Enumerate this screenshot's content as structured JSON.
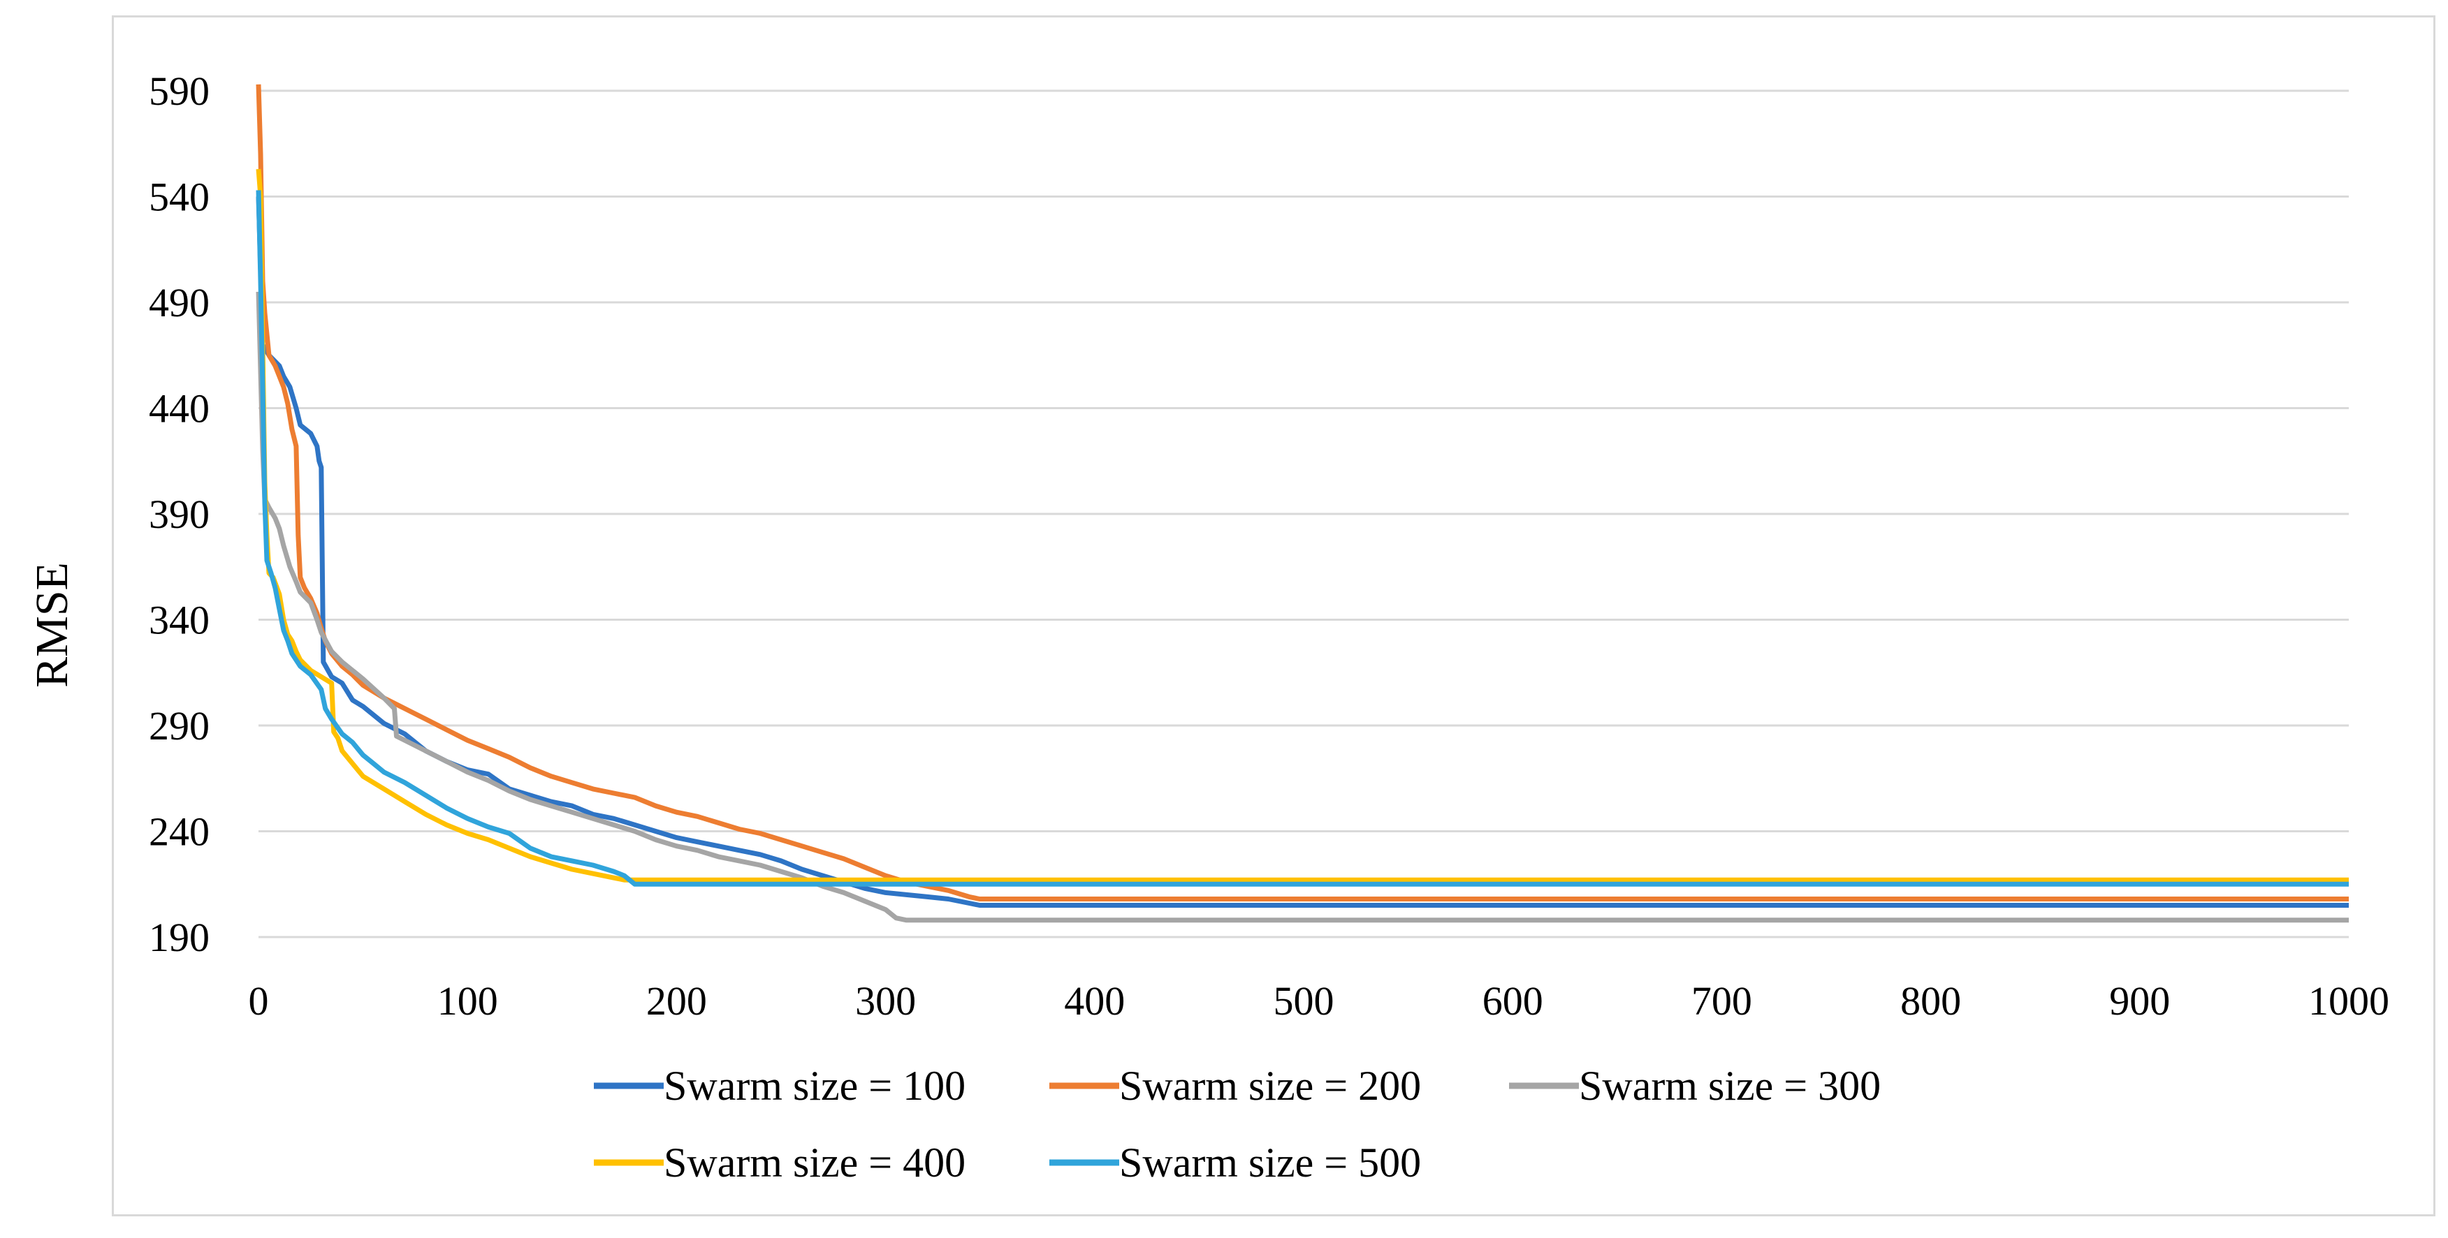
{
  "chart_data": {
    "type": "line",
    "title": "",
    "xlabel": "",
    "ylabel": "RMSE",
    "xlim": [
      0,
      1000
    ],
    "ylim": [
      190,
      600
    ],
    "x_ticks": [
      "0",
      "100",
      "200",
      "300",
      "400",
      "500",
      "600",
      "700",
      "800",
      "900",
      "1000"
    ],
    "y_ticks": [
      "190",
      "240",
      "290",
      "340",
      "390",
      "440",
      "490",
      "540",
      "590"
    ],
    "grid": "horizontal",
    "legend_position": "bottom",
    "series": [
      {
        "name": "Swarm size = 100",
        "color": "#2E74C5",
        "points": [
          [
            0,
            540
          ],
          [
            2,
            470
          ],
          [
            5,
            465
          ],
          [
            8,
            462
          ],
          [
            10,
            460
          ],
          [
            12,
            455
          ],
          [
            15,
            450
          ],
          [
            18,
            440
          ],
          [
            20,
            432
          ],
          [
            25,
            428
          ],
          [
            28,
            422
          ],
          [
            29,
            415
          ],
          [
            30,
            412
          ],
          [
            31,
            320
          ],
          [
            35,
            313
          ],
          [
            40,
            310
          ],
          [
            45,
            302
          ],
          [
            50,
            299
          ],
          [
            60,
            291
          ],
          [
            70,
            286
          ],
          [
            80,
            278
          ],
          [
            90,
            273
          ],
          [
            100,
            269
          ],
          [
            110,
            267
          ],
          [
            120,
            260
          ],
          [
            130,
            257
          ],
          [
            140,
            254
          ],
          [
            150,
            252
          ],
          [
            160,
            248
          ],
          [
            170,
            246
          ],
          [
            180,
            243
          ],
          [
            190,
            240
          ],
          [
            200,
            237
          ],
          [
            210,
            235
          ],
          [
            220,
            233
          ],
          [
            230,
            231
          ],
          [
            240,
            229
          ],
          [
            250,
            226
          ],
          [
            260,
            222
          ],
          [
            270,
            219
          ],
          [
            280,
            216
          ],
          [
            290,
            213
          ],
          [
            300,
            211
          ],
          [
            310,
            210
          ],
          [
            320,
            209
          ],
          [
            330,
            208
          ],
          [
            340,
            206
          ],
          [
            345,
            205
          ],
          [
            360,
            205
          ],
          [
            1000,
            205
          ]
        ]
      },
      {
        "name": "Swarm size = 200",
        "color": "#ED7D31",
        "points": [
          [
            0,
            593
          ],
          [
            1,
            560
          ],
          [
            2,
            500
          ],
          [
            3,
            485
          ],
          [
            4,
            475
          ],
          [
            5,
            465
          ],
          [
            8,
            460
          ],
          [
            10,
            455
          ],
          [
            12,
            450
          ],
          [
            14,
            442
          ],
          [
            16,
            430
          ],
          [
            18,
            422
          ],
          [
            19,
            380
          ],
          [
            20,
            360
          ],
          [
            22,
            355
          ],
          [
            25,
            350
          ],
          [
            28,
            343
          ],
          [
            30,
            336
          ],
          [
            32,
            330
          ],
          [
            35,
            324
          ],
          [
            40,
            318
          ],
          [
            45,
            314
          ],
          [
            50,
            309
          ],
          [
            60,
            303
          ],
          [
            70,
            298
          ],
          [
            80,
            293
          ],
          [
            90,
            288
          ],
          [
            100,
            283
          ],
          [
            110,
            279
          ],
          [
            120,
            275
          ],
          [
            130,
            270
          ],
          [
            140,
            266
          ],
          [
            150,
            263
          ],
          [
            160,
            260
          ],
          [
            170,
            258
          ],
          [
            180,
            256
          ],
          [
            190,
            252
          ],
          [
            200,
            249
          ],
          [
            210,
            247
          ],
          [
            220,
            244
          ],
          [
            230,
            241
          ],
          [
            240,
            239
          ],
          [
            250,
            236
          ],
          [
            260,
            233
          ],
          [
            270,
            230
          ],
          [
            280,
            227
          ],
          [
            290,
            223
          ],
          [
            300,
            219
          ],
          [
            310,
            216
          ],
          [
            320,
            214
          ],
          [
            330,
            212
          ],
          [
            340,
            209
          ],
          [
            345,
            208
          ],
          [
            360,
            208
          ],
          [
            1000,
            208
          ]
        ]
      },
      {
        "name": "Swarm size = 300",
        "color": "#A5A5A5",
        "points": [
          [
            0,
            495
          ],
          [
            2,
            420
          ],
          [
            3,
            397
          ],
          [
            5,
            393
          ],
          [
            8,
            388
          ],
          [
            10,
            383
          ],
          [
            12,
            375
          ],
          [
            15,
            365
          ],
          [
            18,
            358
          ],
          [
            20,
            353
          ],
          [
            25,
            348
          ],
          [
            28,
            340
          ],
          [
            30,
            334
          ],
          [
            35,
            325
          ],
          [
            40,
            320
          ],
          [
            50,
            312
          ],
          [
            60,
            303
          ],
          [
            65,
            298
          ],
          [
            66,
            285
          ],
          [
            70,
            283
          ],
          [
            80,
            278
          ],
          [
            90,
            273
          ],
          [
            100,
            268
          ],
          [
            110,
            264
          ],
          [
            120,
            259
          ],
          [
            130,
            255
          ],
          [
            140,
            252
          ],
          [
            150,
            249
          ],
          [
            160,
            246
          ],
          [
            170,
            243
          ],
          [
            180,
            240
          ],
          [
            190,
            236
          ],
          [
            200,
            233
          ],
          [
            210,
            231
          ],
          [
            220,
            228
          ],
          [
            230,
            226
          ],
          [
            240,
            224
          ],
          [
            250,
            221
          ],
          [
            260,
            218
          ],
          [
            270,
            214
          ],
          [
            280,
            211
          ],
          [
            290,
            207
          ],
          [
            300,
            203
          ],
          [
            305,
            199
          ],
          [
            310,
            198
          ],
          [
            1000,
            198
          ]
        ]
      },
      {
        "name": "Swarm size = 400",
        "color": "#FFC000",
        "points": [
          [
            0,
            553
          ],
          [
            1,
            540
          ],
          [
            2,
            470
          ],
          [
            3,
            405
          ],
          [
            4,
            380
          ],
          [
            5,
            362
          ],
          [
            7,
            360
          ],
          [
            10,
            352
          ],
          [
            12,
            340
          ],
          [
            14,
            333
          ],
          [
            16,
            330
          ],
          [
            18,
            325
          ],
          [
            20,
            321
          ],
          [
            25,
            316
          ],
          [
            30,
            313
          ],
          [
            35,
            310
          ],
          [
            36,
            287
          ],
          [
            38,
            284
          ],
          [
            40,
            278
          ],
          [
            45,
            272
          ],
          [
            50,
            266
          ],
          [
            60,
            260
          ],
          [
            70,
            254
          ],
          [
            80,
            248
          ],
          [
            90,
            243
          ],
          [
            100,
            239
          ],
          [
            110,
            236
          ],
          [
            120,
            232
          ],
          [
            130,
            228
          ],
          [
            140,
            225
          ],
          [
            150,
            222
          ],
          [
            160,
            220
          ],
          [
            170,
            218
          ],
          [
            175,
            217
          ],
          [
            180,
            217
          ],
          [
            1000,
            217
          ]
        ]
      },
      {
        "name": "Swarm size = 500",
        "color": "#30A4DB",
        "points": [
          [
            0,
            543
          ],
          [
            1,
            500
          ],
          [
            2,
            450
          ],
          [
            3,
            395
          ],
          [
            4,
            368
          ],
          [
            6,
            362
          ],
          [
            8,
            355
          ],
          [
            10,
            345
          ],
          [
            12,
            335
          ],
          [
            14,
            330
          ],
          [
            16,
            324
          ],
          [
            20,
            318
          ],
          [
            25,
            314
          ],
          [
            30,
            307
          ],
          [
            32,
            298
          ],
          [
            35,
            293
          ],
          [
            40,
            286
          ],
          [
            45,
            282
          ],
          [
            50,
            276
          ],
          [
            55,
            272
          ],
          [
            60,
            268
          ],
          [
            70,
            263
          ],
          [
            80,
            257
          ],
          [
            90,
            251
          ],
          [
            100,
            246
          ],
          [
            110,
            242
          ],
          [
            120,
            239
          ],
          [
            130,
            232
          ],
          [
            140,
            228
          ],
          [
            150,
            226
          ],
          [
            160,
            224
          ],
          [
            170,
            221
          ],
          [
            175,
            219
          ],
          [
            180,
            215
          ],
          [
            1000,
            215
          ]
        ]
      }
    ]
  }
}
